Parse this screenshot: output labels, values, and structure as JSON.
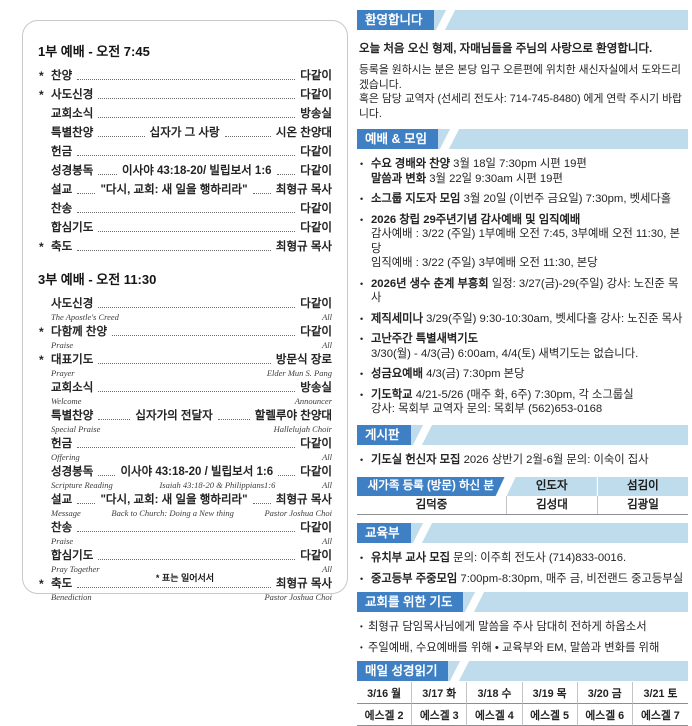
{
  "colors": {
    "header_blue": "#3f80c5",
    "band_blue": "#bedcec"
  },
  "bullet_char": "•",
  "left_panel": {
    "footnote": "* 표는 일어서서",
    "services": [
      {
        "title": "1부 예배 - 오전 7:45",
        "rows": [
          {
            "star": "*",
            "label": "찬양",
            "right": "다같이"
          },
          {
            "star": "*",
            "label": "사도신경",
            "right": "다같이"
          },
          {
            "star": "",
            "label": "교회소식",
            "right": "방송실"
          },
          {
            "star": "",
            "label": "특별찬양",
            "center": "십자가 그 사랑",
            "right": "시온 찬양대"
          },
          {
            "star": "",
            "label": "헌금",
            "right": "다같이"
          },
          {
            "star": "",
            "label": "성경봉독",
            "center": "이사야 43:18-20/ 빌립보서 1:6",
            "right": "다같이"
          },
          {
            "star": "",
            "label": "설교",
            "center": "\"다시, 교회: 새 일을 행하리라\"",
            "right": "최형규 목사"
          },
          {
            "star": "",
            "label": "찬송",
            "right": "다같이"
          },
          {
            "star": "",
            "label": "합심기도",
            "right": "다같이"
          },
          {
            "star": "*",
            "label": "축도",
            "right": "최형규 목사"
          }
        ]
      },
      {
        "title": "3부 예배 - 오전 11:30",
        "rows": [
          {
            "star": "",
            "label": "사도신경",
            "sub_label": "The Apostle's Creed",
            "right": "다같이",
            "sub_right": "All"
          },
          {
            "star": "*",
            "label": "다함께 찬양",
            "sub_label": "Praise",
            "right": "다같이",
            "sub_right": "All"
          },
          {
            "star": "*",
            "label": "대표기도",
            "sub_label": "Prayer",
            "right": "방문식 장로",
            "sub_right": "Elder Mun S. Pang"
          },
          {
            "star": "",
            "label": "교회소식",
            "sub_label": "Welcome",
            "right": "방송실",
            "sub_right": "Announcer"
          },
          {
            "star": "",
            "label": "특별찬양",
            "sub_label": "Special Praise",
            "center": "십자가의 전달자",
            "right": "할렐루야 찬양대",
            "sub_right": "Hallelujah Choir"
          },
          {
            "star": "",
            "label": "헌금",
            "sub_label": "Offering",
            "right": "다같이",
            "sub_right": "All"
          },
          {
            "star": "",
            "label": "성경봉독",
            "sub_label": "Scripture Reading",
            "center": "이사야 43:18-20 / 빌립보서 1:6",
            "sub_center": "Isaiah 43:18-20 & Philippians1:6",
            "right": "다같이",
            "sub_right": "All"
          },
          {
            "star": "",
            "label": "설교",
            "sub_label": "Message",
            "center": "\"다시, 교회: 새 일을 행하리라\"",
            "sub_center": "Back to Church: Doing a New thing",
            "right": "최형규 목사",
            "sub_right": "Pastor Joshua Choi"
          },
          {
            "star": "",
            "label": "찬송",
            "sub_label": "Praise",
            "right": "다같이",
            "sub_right": "All"
          },
          {
            "star": "",
            "label": "합심기도",
            "sub_label": "Pray Together",
            "right": "다같이",
            "sub_right": "All"
          },
          {
            "star": "*",
            "label": "축도",
            "sub_label": "Benediction",
            "right": "최형규 목사",
            "sub_right": "Pastor Joshua Choi"
          }
        ]
      }
    ]
  },
  "right_panel": {
    "welcome": {
      "header": "환영합니다",
      "line_bold": "오늘 처음 오신 형제, 자매님들을 주님의 사랑으로 환영합니다.",
      "line2": "등록을 원하시는 분은 본당 입구 오른편에 위치한 새신자실에서 도와드리겠습니다.",
      "line3": "혹은 담당 교역자 (선세리 전도사: 714-745-8480) 에게 연락 주시기 바랍니다."
    },
    "meetings": {
      "header": "예배 & 모임",
      "items": [
        {
          "lines": [
            {
              "bold": "수요 경배와 찬양",
              "rest": " 3월 18일 7:30pm 시편 19편"
            },
            {
              "bold": "말씀과 변화",
              "rest": " 3월 22일 9:30am 시편 19편"
            }
          ]
        },
        {
          "lines": [
            {
              "bold": "소그룹 지도자 모임",
              "rest": " 3월 20일 (이번주 금요일) 7:30pm, 벳세다홀"
            }
          ]
        },
        {
          "lines": [
            {
              "bold": "2026 창립 29주년기념 감사예배 및 임직예배",
              "rest": ""
            },
            {
              "bold": "",
              "rest": "감사예배 : 3/22 (주일)  1부예배 오전 7:45,  3부예배 오전 11:30,  본당"
            },
            {
              "bold": "",
              "rest": "임직예배 : 3/22 (주일)  3부예배 오전 11:30,  본당"
            }
          ]
        },
        {
          "lines": [
            {
              "bold": "2026년 생수 춘계 부흥회",
              "rest": " 일정: 3/27(금)-29(주일) 강사: 노진준 목사"
            }
          ]
        },
        {
          "lines": [
            {
              "bold": "제직세미나",
              "rest": " 3/29(주일) 9:30-10:30am, 벳세다홀  강사: 노진준 목사"
            }
          ]
        },
        {
          "lines": [
            {
              "bold": "고난주간 특별새벽기도",
              "rest": ""
            },
            {
              "bold": "",
              "rest": "3/30(월) - 4/3(금) 6:00am, 4/4(토) 새벽기도는 없습니다."
            }
          ]
        },
        {
          "lines": [
            {
              "bold": "성금요예배",
              "rest": " 4/3(금) 7:30pm 본당"
            }
          ]
        },
        {
          "lines": [
            {
              "bold": "기도학교",
              "rest": " 4/21-5/26 (매주 화, 6주) 7:30pm, 각 소그룹실"
            },
            {
              "bold": "",
              "rest": "강사: 목회부 교역자   문의: 목회부 (562)653-0168"
            }
          ]
        }
      ]
    },
    "board": {
      "header": "게시판",
      "items": [
        {
          "lines": [
            {
              "bold": "기도실 헌신자 모집",
              "rest": " 2026 상반기 2월-6월 문의: 이숙이 집사"
            }
          ]
        }
      ]
    },
    "newcomer": {
      "headers": [
        "새가족 등록 (방문) 하신 분",
        "인도자",
        "섬김이"
      ],
      "row": [
        "김덕중",
        "김성대",
        "김광일"
      ]
    },
    "education": {
      "header": "교육부",
      "items": [
        {
          "lines": [
            {
              "bold": "유치부 교사 모집",
              "rest": " 문의: 이주희 전도사 (714)833-0016."
            }
          ]
        },
        {
          "lines": [
            {
              "bold": "중고등부 주중모임",
              "rest": " 7:00pm-8:30pm, 매주 금, 비전랜드 중고등부실"
            }
          ]
        }
      ]
    },
    "prayer": {
      "header": "교회를 위한 기도",
      "items": [
        {
          "lines": [
            {
              "bold": "",
              "rest": "최형규 담임목사님에게 말씀을 주사 담대히 전하게 하옵소서"
            }
          ]
        },
        {
          "lines": [
            {
              "bold": "",
              "rest": "주일예배, 수요예배를 위해  • 교육부와 EM, 말씀과 변화를 위해"
            }
          ]
        }
      ]
    },
    "reading": {
      "header": "매일 성경읽기",
      "dates": [
        "3/16 월",
        "3/17 화",
        "3/18 수",
        "3/19 목",
        "3/20 금",
        "3/21 토"
      ],
      "readings": [
        "에스겔 2",
        "에스겔 3",
        "에스겔 4",
        "에스겔 5",
        "에스겔 6",
        "에스겔 7"
      ]
    }
  }
}
